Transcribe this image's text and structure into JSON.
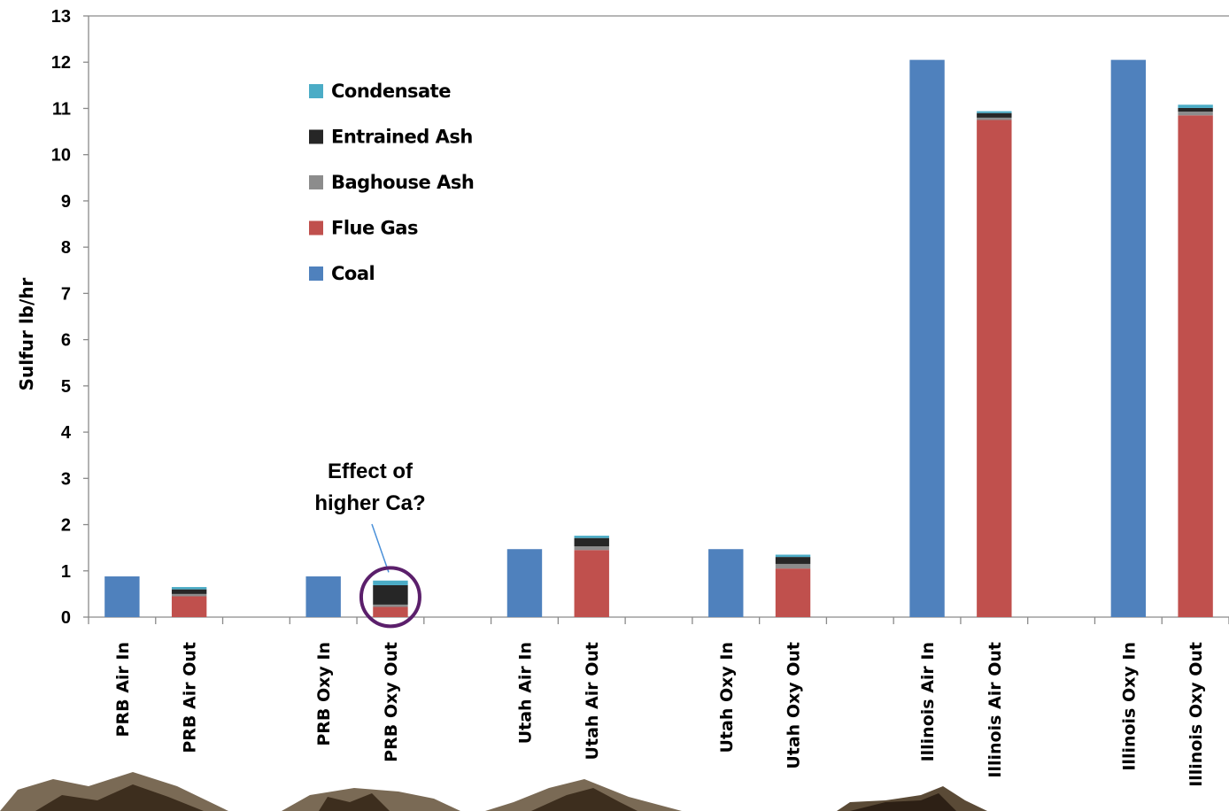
{
  "chart_data": {
    "type": "bar",
    "stacked": true,
    "title": "",
    "xlabel": "",
    "ylabel": "Sulfur lb/hr",
    "ylim": [
      0,
      13
    ],
    "yticks": [
      "0",
      "1",
      "2",
      "3",
      "4",
      "5",
      "6",
      "7",
      "8",
      "9",
      "10",
      "11",
      "12",
      "13"
    ],
    "grid": false,
    "legend_position": "top-left (inside plot)",
    "categories": [
      "PRB Air In",
      "PRB Air Out",
      "",
      "PRB Oxy In",
      "PRB Oxy Out",
      "",
      "Utah Air In",
      "Utah Air Out",
      "",
      "Utah Oxy In",
      "Utah Oxy Out",
      "",
      "Illinois Air In",
      "Illinois Air Out",
      "",
      "Illinois Oxy In",
      "Illinois Oxy Out"
    ],
    "series": [
      {
        "name": "Coal",
        "color": "#4F81BD",
        "values": [
          0.88,
          0,
          null,
          0.88,
          0,
          null,
          1.47,
          0,
          null,
          1.47,
          0,
          null,
          12.05,
          0,
          null,
          12.05,
          0
        ]
      },
      {
        "name": "Flue Gas",
        "color": "#C0504D",
        "values": [
          0,
          0.45,
          null,
          0,
          0.22,
          null,
          0,
          1.45,
          null,
          0,
          1.05,
          null,
          0,
          10.75,
          null,
          0,
          10.85
        ]
      },
      {
        "name": "Baghouse Ash",
        "color": "#8C8C8C",
        "values": [
          0,
          0.05,
          null,
          0,
          0.05,
          null,
          0,
          0.08,
          null,
          0,
          0.1,
          null,
          0,
          0.05,
          null,
          0,
          0.08
        ]
      },
      {
        "name": "Entrained Ash",
        "color": "#262626",
        "values": [
          0,
          0.1,
          null,
          0,
          0.42,
          null,
          0,
          0.18,
          null,
          0,
          0.15,
          null,
          0,
          0.1,
          null,
          0,
          0.08
        ]
      },
      {
        "name": "Condensate",
        "color": "#4BACC6",
        "values": [
          0,
          0.05,
          null,
          0,
          0.1,
          null,
          0,
          0.05,
          null,
          0,
          0.05,
          null,
          0,
          0.04,
          null,
          0,
          0.07
        ]
      }
    ],
    "legend_order": [
      "Condensate",
      "Entrained Ash",
      "Baghouse Ash",
      "Flue Gas",
      "Coal"
    ],
    "annotation": {
      "lines": [
        "Effect of",
        "higher Ca?"
      ],
      "target_category": "PRB Oxy Out",
      "highlight_color": "#5B1F6B",
      "leader_color": "#4A90D9"
    }
  }
}
